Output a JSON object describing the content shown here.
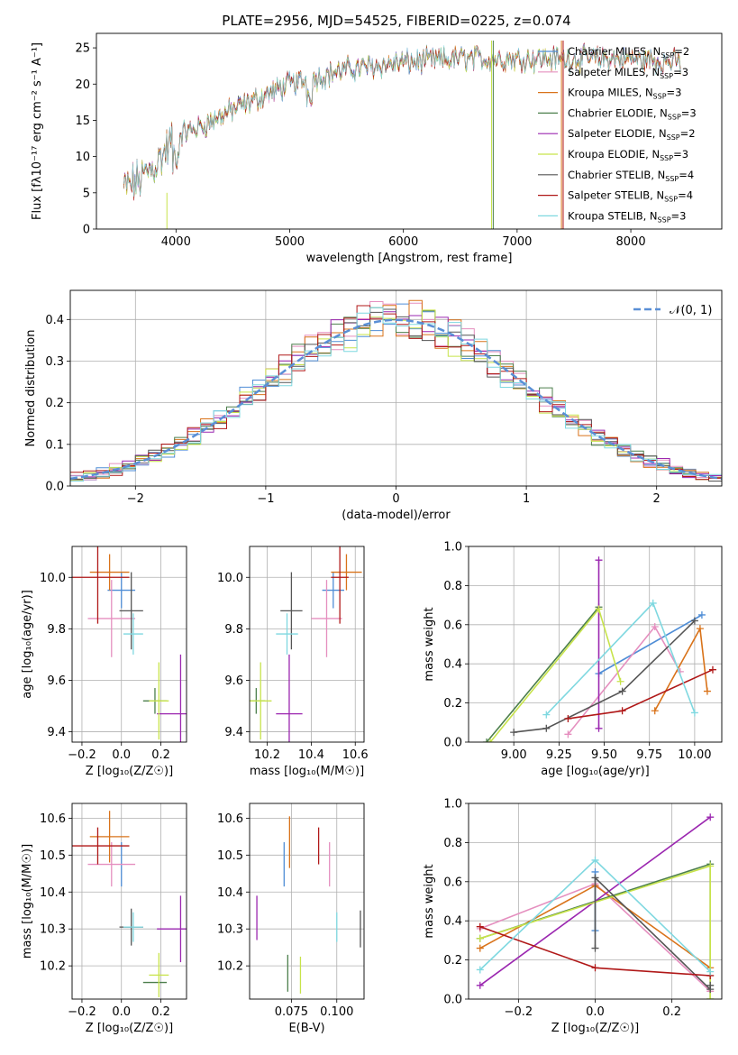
{
  "figure": {
    "title": "PLATE=2956, MJD=54525, FIBERID=0225, z=0.074"
  },
  "colors": {
    "chabrier_miles": "#4f8dd6",
    "salpeter_miles": "#e58fbf",
    "kroupa_miles": "#d9731a",
    "chabrier_elodie": "#4c7f4c",
    "salpeter_elodie": "#9b27b0",
    "kroupa_elodie": "#c7e34a",
    "chabrier_stelib": "#555555",
    "salpeter_stelib": "#b01818",
    "kroupa_stelib": "#7fd8e0",
    "normal": "#5a8fd6",
    "grid": "#b0b0b0"
  },
  "chart_data": [
    {
      "id": "spectrum",
      "type": "line",
      "title": "PLATE=2956, MJD=54525, FIBERID=0225, z=0.074",
      "xlabel": "wavelength [Angstrom, rest frame]",
      "ylabel": "Flux [fλ10⁻¹⁷ erg cm⁻² s⁻¹ A⁻¹]",
      "xlim": [
        3300,
        8800
      ],
      "ylim": [
        0,
        27
      ],
      "xticks": [
        4000,
        5000,
        6000,
        7000,
        8000
      ],
      "yticks": [
        0,
        5,
        10,
        15,
        20,
        25
      ],
      "grid": false,
      "legend": "right",
      "continuum": [
        [
          3540,
          5.5
        ],
        [
          3700,
          7
        ],
        [
          3850,
          9.5
        ],
        [
          4000,
          13
        ],
        [
          4200,
          14
        ],
        [
          4500,
          16.5
        ],
        [
          5000,
          20
        ],
        [
          5500,
          22
        ],
        [
          6000,
          23
        ],
        [
          6500,
          23.5
        ],
        [
          7000,
          23.5
        ],
        [
          7500,
          23.5
        ],
        [
          8000,
          23.5
        ],
        [
          8440,
          23
        ]
      ],
      "series": [
        {
          "name": "Chabrier MILES, N_SSP=2",
          "label": "Chabrier MILES, N",
          "sub": "SSP",
          "suffix": "=2",
          "color": "#4f8dd6"
        },
        {
          "name": "Salpeter MILES, N_SSP=3",
          "label": "Salpeter MILES, N",
          "sub": "SSP",
          "suffix": "=3",
          "color": "#e58fbf"
        },
        {
          "name": "Kroupa MILES, N_SSP=3",
          "label": "Kroupa MILES, N",
          "sub": "SSP",
          "suffix": "=3",
          "color": "#d9731a"
        },
        {
          "name": "Chabrier ELODIE, N_SSP=3",
          "label": "Chabrier ELODIE, N",
          "sub": "SSP",
          "suffix": "=3",
          "color": "#4c7f4c"
        },
        {
          "name": "Salpeter ELODIE, N_SSP=2",
          "label": "Salpeter ELODIE, N",
          "sub": "SSP",
          "suffix": "=2",
          "color": "#9b27b0"
        },
        {
          "name": "Kroupa ELODIE, N_SSP=3",
          "label": "Kroupa ELODIE, N",
          "sub": "SSP",
          "suffix": "=3",
          "color": "#c7e34a"
        },
        {
          "name": "Chabrier STELIB, N_SSP=4",
          "label": "Chabrier STELIB, N",
          "sub": "SSP",
          "suffix": "=4",
          "color": "#555555"
        },
        {
          "name": "Salpeter STELIB, N_SSP=4",
          "label": "Salpeter STELIB, N",
          "sub": "SSP",
          "suffix": "=4",
          "color": "#b01818"
        },
        {
          "name": "Kroupa STELIB, N_SSP=3",
          "label": "Kroupa STELIB, N",
          "sub": "SSP",
          "suffix": "=3",
          "color": "#7fd8e0"
        }
      ]
    },
    {
      "id": "residuals",
      "type": "histogram",
      "xlabel": "(data-model)/error",
      "ylabel": "Normed distribution",
      "xlim": [
        -2.5,
        2.5
      ],
      "ylim": [
        0,
        0.47
      ],
      "xticks": [
        -2,
        -1,
        0,
        1,
        2
      ],
      "yticks": [
        0.0,
        0.1,
        0.2,
        0.3,
        0.4
      ],
      "grid": true,
      "legend": "top-right",
      "normal_label": "𝒩(0, 1)",
      "bin_width": 0.1,
      "series_colors": [
        "#4f8dd6",
        "#e58fbf",
        "#d9731a",
        "#4c7f4c",
        "#9b27b0",
        "#c7e34a",
        "#555555",
        "#b01818",
        "#7fd8e0"
      ]
    },
    {
      "id": "age_vs_Z",
      "type": "errorbar",
      "xlabel": "Z [log₁₀(Z/Z☉)]",
      "ylabel": "age  [log₁₀(age/yr)]",
      "xlim": [
        -0.25,
        0.33
      ],
      "ylim": [
        9.36,
        10.12
      ],
      "xticks": [
        -0.2,
        0.0,
        0.2
      ],
      "yticks": [
        9.4,
        9.6,
        9.8,
        10.0
      ],
      "grid": true,
      "points": [
        {
          "color": "#4f8dd6",
          "x": 0.0,
          "xerr": 0.07,
          "y": 9.95,
          "yerr": 0.07
        },
        {
          "color": "#e58fbf",
          "x": -0.05,
          "xerr": 0.12,
          "y": 9.84,
          "yerr": 0.15
        },
        {
          "color": "#d9731a",
          "x": -0.06,
          "xerr": 0.1,
          "y": 10.02,
          "yerr": 0.07
        },
        {
          "color": "#4c7f4c",
          "x": 0.17,
          "xerr": 0.06,
          "y": 9.52,
          "yerr": 0.05
        },
        {
          "color": "#9b27b0",
          "x": 0.3,
          "xerr": 0.12,
          "y": 9.47,
          "yerr": 0.23
        },
        {
          "color": "#c7e34a",
          "x": 0.19,
          "xerr": 0.05,
          "y": 9.52,
          "yerr": 0.15
        },
        {
          "color": "#555555",
          "x": 0.05,
          "xerr": 0.06,
          "y": 9.87,
          "yerr": 0.15
        },
        {
          "color": "#b01818",
          "x": -0.12,
          "xerr": 0.16,
          "y": 10.0,
          "yerr": 0.18
        },
        {
          "color": "#7fd8e0",
          "x": 0.06,
          "xerr": 0.05,
          "y": 9.78,
          "yerr": 0.08
        }
      ]
    },
    {
      "id": "age_vs_mass",
      "type": "errorbar",
      "xlabel": "mass [log₁₀(M/M☉)]",
      "ylabel": "",
      "xlim": [
        10.12,
        10.64
      ],
      "ylim": [
        9.36,
        10.12
      ],
      "xticks": [
        10.2,
        10.4,
        10.6
      ],
      "yticks": [
        9.4,
        9.6,
        9.8,
        10.0
      ],
      "grid": true,
      "points": [
        {
          "color": "#4f8dd6",
          "x": 10.5,
          "xerr": 0.05,
          "y": 9.95,
          "yerr": 0.07
        },
        {
          "color": "#e58fbf",
          "x": 10.47,
          "xerr": 0.07,
          "y": 9.84,
          "yerr": 0.15
        },
        {
          "color": "#d9731a",
          "x": 10.56,
          "xerr": 0.07,
          "y": 10.02,
          "yerr": 0.07
        },
        {
          "color": "#4c7f4c",
          "x": 10.15,
          "xerr": 0.04,
          "y": 9.52,
          "yerr": 0.05
        },
        {
          "color": "#9b27b0",
          "x": 10.3,
          "xerr": 0.06,
          "y": 9.47,
          "yerr": 0.23
        },
        {
          "color": "#c7e34a",
          "x": 10.17,
          "xerr": 0.05,
          "y": 9.52,
          "yerr": 0.15
        },
        {
          "color": "#555555",
          "x": 10.31,
          "xerr": 0.05,
          "y": 9.87,
          "yerr": 0.15
        },
        {
          "color": "#b01818",
          "x": 10.53,
          "xerr": 0.04,
          "y": 10.0,
          "yerr": 0.18
        },
        {
          "color": "#7fd8e0",
          "x": 10.29,
          "xerr": 0.05,
          "y": 9.78,
          "yerr": 0.08
        }
      ]
    },
    {
      "id": "mass_weight_vs_age",
      "type": "line",
      "xlabel": "age  [log₁₀(age/yr)]",
      "ylabel": "mass weight",
      "xlim": [
        8.75,
        10.15
      ],
      "ylim": [
        0.0,
        1.0
      ],
      "xticks": [
        9.0,
        9.25,
        9.5,
        9.75,
        10.0
      ],
      "yticks": [
        0.0,
        0.2,
        0.4,
        0.6,
        0.8,
        1.0
      ],
      "grid": true,
      "series": [
        {
          "color": "#4f8dd6",
          "x": [
            9.47,
            10.04
          ],
          "y": [
            0.35,
            0.65
          ]
        },
        {
          "color": "#e58fbf",
          "x": [
            9.3,
            9.78,
            9.92
          ],
          "y": [
            0.04,
            0.59,
            0.36
          ]
        },
        {
          "color": "#d9731a",
          "x": [
            9.78,
            10.03,
            10.07
          ],
          "y": [
            0.16,
            0.58,
            0.26
          ]
        },
        {
          "color": "#4c7f4c",
          "x": [
            8.85,
            9.47
          ],
          "y": [
            0.0,
            0.69
          ]
        },
        {
          "color": "#9b27b0",
          "x": [
            9.47,
            9.47
          ],
          "y": [
            0.07,
            0.93
          ]
        },
        {
          "color": "#c7e34a",
          "x": [
            8.87,
            9.47,
            9.59
          ],
          "y": [
            0.0,
            0.68,
            0.31
          ]
        },
        {
          "color": "#555555",
          "x": [
            9.0,
            9.18,
            9.6,
            10.0
          ],
          "y": [
            0.05,
            0.07,
            0.26,
            0.62
          ]
        },
        {
          "color": "#b01818",
          "x": [
            9.3,
            9.6,
            10.1
          ],
          "y": [
            0.12,
            0.16,
            0.37
          ]
        },
        {
          "color": "#7fd8e0",
          "x": [
            9.18,
            9.77,
            10.0
          ],
          "y": [
            0.14,
            0.71,
            0.15
          ]
        }
      ]
    },
    {
      "id": "mass_vs_Z",
      "type": "errorbar",
      "xlabel": "Z [log₁₀(Z/Z☉)]",
      "ylabel": "mass [log₁₀(M/M☉)]",
      "xlim": [
        -0.25,
        0.33
      ],
      "ylim": [
        10.11,
        10.64
      ],
      "xticks": [
        -0.2,
        0.0,
        0.2
      ],
      "yticks": [
        10.2,
        10.3,
        10.4,
        10.5,
        10.6
      ],
      "grid": true,
      "points": [
        {
          "color": "#4f8dd6",
          "x": 0.0,
          "xerr": 0.0,
          "y": 10.475,
          "yerr": 0.06
        },
        {
          "color": "#e58fbf",
          "x": -0.05,
          "xerr": 0.12,
          "y": 10.475,
          "yerr": 0.06
        },
        {
          "color": "#d9731a",
          "x": -0.06,
          "xerr": 0.1,
          "y": 10.55,
          "yerr": 0.07
        },
        {
          "color": "#4c7f4c",
          "x": 0.17,
          "xerr": 0.06,
          "y": 10.155,
          "yerr": 0.0
        },
        {
          "color": "#9b27b0",
          "x": 0.3,
          "xerr": 0.12,
          "y": 10.3,
          "yerr": 0.09
        },
        {
          "color": "#c7e34a",
          "x": 0.19,
          "xerr": 0.05,
          "y": 10.175,
          "yerr": 0.06
        },
        {
          "color": "#555555",
          "x": 0.05,
          "xerr": 0.06,
          "y": 10.305,
          "yerr": 0.05
        },
        {
          "color": "#b01818",
          "x": -0.12,
          "xerr": 0.16,
          "y": 10.525,
          "yerr": 0.05
        },
        {
          "color": "#7fd8e0",
          "x": 0.06,
          "xerr": 0.05,
          "y": 10.305,
          "yerr": 0.04
        }
      ]
    },
    {
      "id": "mass_vs_ebv",
      "type": "errorbar",
      "xlabel": "E(B-V)",
      "ylabel": "",
      "xlim": [
        0.052,
        0.115
      ],
      "ylim": [
        10.11,
        10.64
      ],
      "xticks": [
        0.075,
        0.1
      ],
      "xticklabels": [
        "0.075",
        "0.100"
      ],
      "yticks": [
        10.2,
        10.3,
        10.4,
        10.5,
        10.6
      ],
      "grid": true,
      "points": [
        {
          "color": "#4f8dd6",
          "x": 0.071,
          "xerr": 0.0,
          "y": 10.475,
          "yerr": 0.06
        },
        {
          "color": "#e58fbf",
          "x": 0.096,
          "xerr": 0.0,
          "y": 10.475,
          "yerr": 0.06
        },
        {
          "color": "#d9731a",
          "x": 0.074,
          "xerr": 0.0,
          "y": 10.535,
          "yerr": 0.07
        },
        {
          "color": "#4c7f4c",
          "x": 0.073,
          "xerr": 0.0,
          "y": 10.18,
          "yerr": 0.05
        },
        {
          "color": "#9b27b0",
          "x": 0.056,
          "xerr": 0.0,
          "y": 10.33,
          "yerr": 0.06
        },
        {
          "color": "#c7e34a",
          "x": 0.08,
          "xerr": 0.0,
          "y": 10.175,
          "yerr": 0.05
        },
        {
          "color": "#555555",
          "x": 0.113,
          "xerr": 0.0,
          "y": 10.3,
          "yerr": 0.05
        },
        {
          "color": "#b01818",
          "x": 0.09,
          "xerr": 0.0,
          "y": 10.525,
          "yerr": 0.05
        },
        {
          "color": "#7fd8e0",
          "x": 0.1,
          "xerr": 0.0,
          "y": 10.305,
          "yerr": 0.04
        }
      ]
    },
    {
      "id": "mass_weight_vs_Z",
      "type": "line",
      "xlabel": "Z [log₁₀(Z/Z☉)]",
      "ylabel": "mass weight",
      "xlim": [
        -0.33,
        0.33
      ],
      "ylim": [
        0.0,
        1.0
      ],
      "xticks": [
        -0.2,
        0.0,
        0.2
      ],
      "yticks": [
        0.0,
        0.2,
        0.4,
        0.6,
        0.8,
        1.0
      ],
      "grid": true,
      "series": [
        {
          "color": "#4f8dd6",
          "x": [
            0.0,
            0.0
          ],
          "y": [
            0.35,
            0.65
          ]
        },
        {
          "color": "#e58fbf",
          "x": [
            -0.3,
            0.0,
            0.3
          ],
          "y": [
            0.36,
            0.59,
            0.04
          ]
        },
        {
          "color": "#d9731a",
          "x": [
            -0.3,
            0.0,
            0.3
          ],
          "y": [
            0.26,
            0.58,
            0.16
          ]
        },
        {
          "color": "#4c7f4c",
          "x": [
            -0.3,
            0.3,
            0.3
          ],
          "y": [
            0.31,
            0.69,
            0.0
          ]
        },
        {
          "color": "#9b27b0",
          "x": [
            -0.3,
            0.3
          ],
          "y": [
            0.07,
            0.93
          ]
        },
        {
          "color": "#c7e34a",
          "x": [
            -0.3,
            0.3,
            0.3
          ],
          "y": [
            0.31,
            0.68,
            0.0
          ]
        },
        {
          "color": "#555555",
          "x": [
            0.0,
            0.0,
            0.3,
            0.3
          ],
          "y": [
            0.26,
            0.62,
            0.05,
            0.07
          ]
        },
        {
          "color": "#b01818",
          "x": [
            -0.3,
            0.0,
            0.3
          ],
          "y": [
            0.37,
            0.16,
            0.12
          ]
        },
        {
          "color": "#7fd8e0",
          "x": [
            -0.3,
            0.0,
            0.3
          ],
          "y": [
            0.15,
            0.71,
            0.14
          ]
        }
      ]
    }
  ]
}
